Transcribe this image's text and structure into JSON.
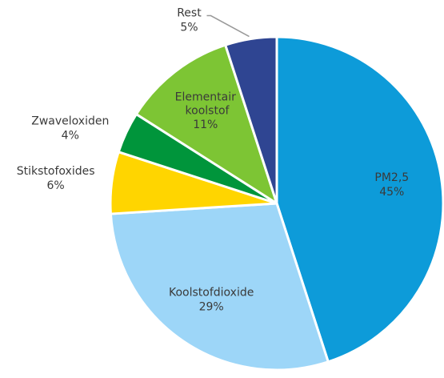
{
  "chart_data": {
    "type": "pie",
    "categories": [
      "PM2,5",
      "Koolstofdioxide",
      "Stikstofoxides",
      "Zwaveloxiden",
      "Elementair koolstof",
      "Rest"
    ],
    "values": [
      45,
      29,
      6,
      4,
      11,
      5
    ],
    "value_labels": [
      "45%",
      "29%",
      "6%",
      "4%",
      "11%",
      "5%"
    ],
    "colors": [
      "#0d9bd9",
      "#9dd6f8",
      "#ffd500",
      "#00953b",
      "#7dc534",
      "#2f4592"
    ]
  }
}
